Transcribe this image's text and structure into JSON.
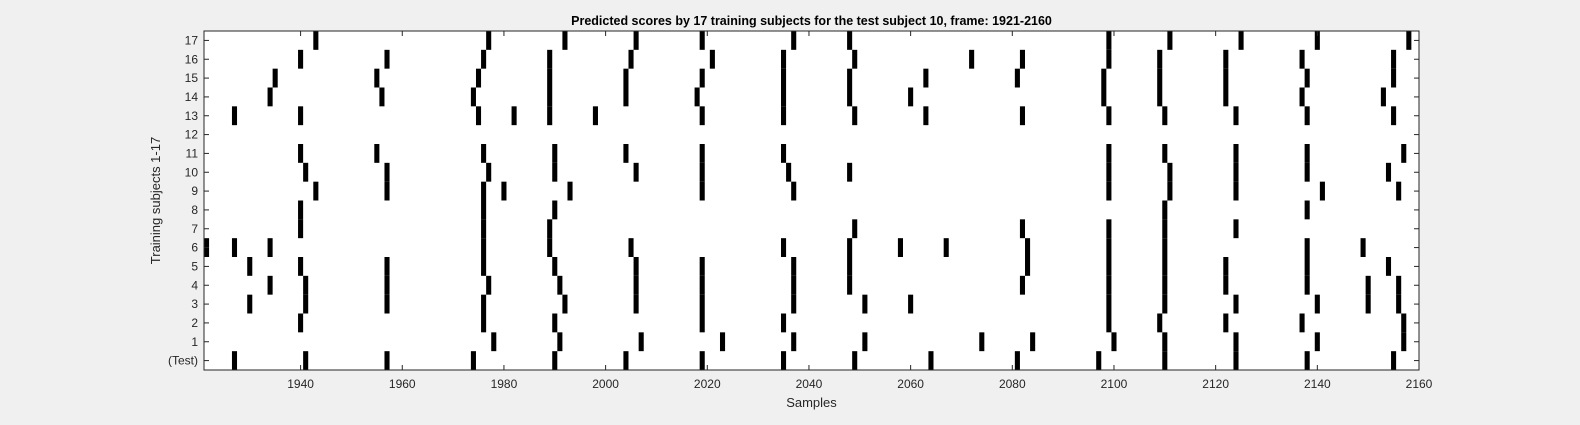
{
  "figure_background": "#f0f0f0",
  "chart_data": {
    "type": "heatmap",
    "title": "Predicted scores by 17 training subjects for the test subject 10, frame: 1921-2160",
    "xlabel": "Samples",
    "ylabel": "Training subjects 1-17",
    "xlim": [
      1921,
      2160
    ],
    "x_ticks": [
      1940,
      1960,
      1980,
      2000,
      2020,
      2040,
      2060,
      2080,
      2100,
      2120,
      2140,
      2160
    ],
    "y_tick_labels": [
      "(Test)",
      "1",
      "2",
      "3",
      "4",
      "5",
      "6",
      "7",
      "8",
      "9",
      "10",
      "11",
      "12",
      "13",
      "14",
      "15",
      "16",
      "17"
    ],
    "grid": false,
    "mark_color": "#000000",
    "background_color": "#ffffff",
    "rows": [
      {
        "label": "(Test)",
        "marks": [
          1927,
          1941,
          1957,
          1974,
          1990,
          2004,
          2019,
          2035,
          2049,
          2064,
          2081,
          2097,
          2110,
          2124,
          2138,
          2155
        ]
      },
      {
        "label": "1",
        "marks": [
          1978,
          1991,
          2007,
          2023,
          2037,
          2051,
          2074,
          2084,
          2100,
          2110,
          2124,
          2140,
          2157
        ]
      },
      {
        "label": "2",
        "marks": [
          1940,
          1976,
          1990,
          2019,
          2035,
          2099,
          2109,
          2122,
          2137,
          2157
        ]
      },
      {
        "label": "3",
        "marks": [
          1930,
          1941,
          1957,
          1976,
          1992,
          2006,
          2019,
          2037,
          2051,
          2060,
          2099,
          2110,
          2124,
          2140,
          2150,
          2156
        ]
      },
      {
        "label": "4",
        "marks": [
          1934,
          1941,
          1957,
          1977,
          1991,
          2006,
          2019,
          2037,
          2048,
          2082,
          2099,
          2110,
          2122,
          2138,
          2150,
          2156
        ]
      },
      {
        "label": "5",
        "marks": [
          1930,
          1940,
          1957,
          1976,
          1990,
          2006,
          2019,
          2037,
          2048,
          2083,
          2099,
          2110,
          2122,
          2138,
          2154
        ]
      },
      {
        "label": "6",
        "marks": [
          1921,
          1927,
          1934,
          1976,
          1989,
          2005,
          2035,
          2048,
          2058,
          2067,
          2083,
          2099,
          2110,
          2138,
          2149
        ]
      },
      {
        "label": "7",
        "marks": [
          1940,
          1976,
          1989,
          2049,
          2082,
          2099,
          2110,
          2124
        ]
      },
      {
        "label": "8",
        "marks": [
          1940,
          1976,
          1990,
          2110,
          2138
        ]
      },
      {
        "label": "9",
        "marks": [
          1943,
          1957,
          1976,
          1980,
          1993,
          2019,
          2037,
          2099,
          2111,
          2124,
          2141,
          2156
        ]
      },
      {
        "label": "10",
        "marks": [
          1941,
          1957,
          1977,
          1990,
          2006,
          2019,
          2036,
          2048,
          2099,
          2111,
          2124,
          2138,
          2154
        ]
      },
      {
        "label": "11",
        "marks": [
          1940,
          1955,
          1976,
          1990,
          2004,
          2019,
          2035,
          2099,
          2110,
          2124,
          2138,
          2157
        ]
      },
      {
        "label": "12",
        "marks": []
      },
      {
        "label": "13",
        "marks": [
          1927,
          1940,
          1975,
          1982,
          1989,
          1998,
          2019,
          2035,
          2049,
          2063,
          2082,
          2099,
          2110,
          2124,
          2138,
          2155
        ]
      },
      {
        "label": "14",
        "marks": [
          1934,
          1956,
          1974,
          1989,
          2004,
          2018,
          2035,
          2048,
          2060,
          2098,
          2109,
          2122,
          2137,
          2153
        ]
      },
      {
        "label": "15",
        "marks": [
          1935,
          1955,
          1975,
          1989,
          2004,
          2019,
          2035,
          2048,
          2063,
          2081,
          2098,
          2109,
          2122,
          2138,
          2155
        ]
      },
      {
        "label": "16",
        "marks": [
          1940,
          1957,
          1976,
          1989,
          2005,
          2021,
          2035,
          2049,
          2072,
          2082,
          2099,
          2109,
          2122,
          2137,
          2155
        ]
      },
      {
        "label": "17",
        "marks": [
          1943,
          1977,
          1992,
          2006,
          2019,
          2037,
          2048,
          2099,
          2111,
          2125,
          2140,
          2158
        ]
      }
    ]
  }
}
